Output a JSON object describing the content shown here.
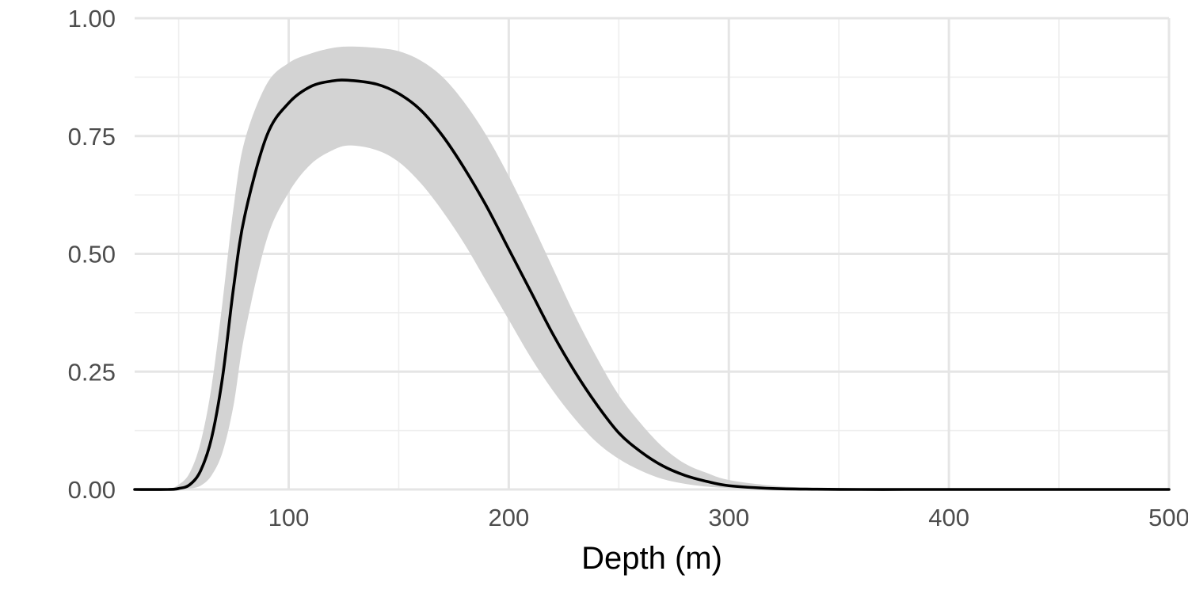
{
  "chart_data": {
    "type": "area",
    "title": "",
    "xlabel": "Depth (m)",
    "ylabel": "",
    "xlim": [
      30,
      500
    ],
    "ylim": [
      0,
      1
    ],
    "x_ticks": [
      100,
      200,
      300,
      400,
      500
    ],
    "x_tick_labels": [
      "100",
      "200",
      "300",
      "400",
      "500"
    ],
    "x_minor_ticks": [
      50,
      150,
      250,
      350,
      450
    ],
    "y_ticks": [
      0,
      0.25,
      0.5,
      0.75,
      1
    ],
    "y_tick_labels": [
      "0.00",
      "0.25",
      "0.50",
      "0.75",
      "1.00"
    ],
    "y_minor_ticks": [
      0.125,
      0.375,
      0.625,
      0.875
    ],
    "grid": true,
    "legend": "none",
    "colors": {
      "line": "#000000",
      "ribbon": "#d3d3d3"
    },
    "series": [
      {
        "x": [
          30,
          45,
          50,
          55,
          60,
          65,
          70,
          75,
          80,
          90,
          100,
          110,
          120,
          128,
          140,
          150,
          160,
          170,
          180,
          190,
          200,
          210,
          220,
          230,
          240,
          250,
          260,
          270,
          280,
          290,
          300,
          320,
          340,
          360,
          380,
          400,
          450,
          500
        ],
        "y": [
          0,
          0,
          0.002,
          0.01,
          0.04,
          0.11,
          0.24,
          0.43,
          0.58,
          0.75,
          0.82,
          0.855,
          0.867,
          0.868,
          0.86,
          0.84,
          0.805,
          0.75,
          0.68,
          0.6,
          0.51,
          0.42,
          0.33,
          0.25,
          0.18,
          0.12,
          0.08,
          0.05,
          0.03,
          0.017,
          0.008,
          0.002,
          0.0005,
          0,
          0,
          0,
          0,
          0
        ],
        "lower": [
          0,
          0,
          0,
          0.002,
          0.008,
          0.03,
          0.08,
          0.18,
          0.33,
          0.53,
          0.63,
          0.69,
          0.72,
          0.73,
          0.72,
          0.695,
          0.65,
          0.59,
          0.52,
          0.44,
          0.36,
          0.28,
          0.21,
          0.15,
          0.1,
          0.065,
          0.04,
          0.022,
          0.012,
          0.006,
          0.003,
          0.001,
          0,
          0,
          0,
          0,
          0,
          0
        ],
        "upper": [
          0,
          0.002,
          0.01,
          0.035,
          0.1,
          0.22,
          0.4,
          0.6,
          0.74,
          0.86,
          0.905,
          0.925,
          0.937,
          0.94,
          0.937,
          0.93,
          0.91,
          0.875,
          0.82,
          0.75,
          0.665,
          0.57,
          0.47,
          0.37,
          0.28,
          0.2,
          0.14,
          0.09,
          0.055,
          0.035,
          0.02,
          0.008,
          0.003,
          0.001,
          0,
          0,
          0,
          0
        ]
      }
    ]
  }
}
